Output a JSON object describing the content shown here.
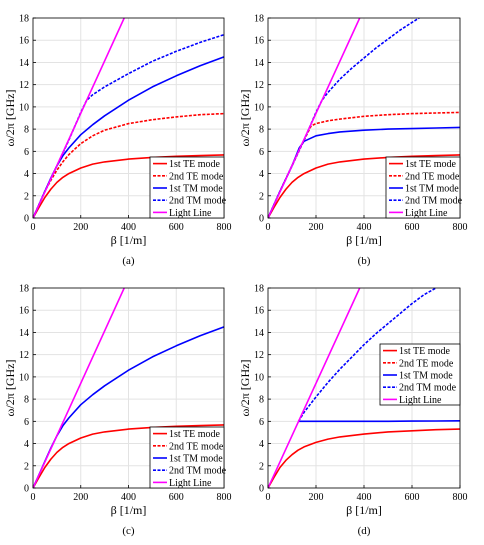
{
  "chart_data": [
    {
      "type": "line",
      "caption": "(a)",
      "xlabel": "β [1/m]",
      "ylabel": "ω/2π [GHz]",
      "xlim": [
        0,
        800
      ],
      "ylim": [
        0,
        18
      ],
      "xticks": [
        "0",
        "200",
        "400",
        "600",
        "800"
      ],
      "yticks": [
        "0",
        "2",
        "4",
        "6",
        "8",
        "10",
        "12",
        "14",
        "16",
        "18"
      ],
      "grid": true,
      "legend_position": "bottom-right",
      "series": [
        {
          "name": "1st TE mode",
          "color": "#ff0000",
          "dash": "solid",
          "x": [
            0,
            25,
            50,
            75,
            100,
            125,
            150,
            200,
            250,
            300,
            400,
            500,
            600,
            700,
            800
          ],
          "y": [
            0,
            0.95,
            1.85,
            2.6,
            3.2,
            3.65,
            4.0,
            4.5,
            4.85,
            5.05,
            5.3,
            5.45,
            5.55,
            5.62,
            5.68
          ]
        },
        {
          "name": "2nd TE mode",
          "color": "#ff0000",
          "dash": "dashed",
          "x": [
            0,
            25,
            50,
            75,
            100,
            125,
            150,
            175,
            200,
            250,
            300,
            400,
            500,
            600,
            700,
            800
          ],
          "y": [
            0,
            1.2,
            2.4,
            3.4,
            4.3,
            5.05,
            5.7,
            6.2,
            6.7,
            7.4,
            7.9,
            8.5,
            8.85,
            9.1,
            9.3,
            9.4
          ]
        },
        {
          "name": "1st TM mode",
          "color": "#0000ff",
          "dash": "solid",
          "x": [
            0,
            25,
            50,
            75,
            100,
            125,
            150,
            200,
            250,
            300,
            400,
            500,
            600,
            700,
            800
          ],
          "y": [
            0,
            1.2,
            2.4,
            3.6,
            4.7,
            5.6,
            6.3,
            7.5,
            8.4,
            9.2,
            10.6,
            11.8,
            12.8,
            13.7,
            14.5
          ]
        },
        {
          "name": "2nd TM mode",
          "color": "#0000ff",
          "dash": "dashed",
          "x": [
            0,
            50,
            100,
            150,
            200,
            225,
            250,
            300,
            400,
            500,
            600,
            700,
            800
          ],
          "y": [
            0,
            2.4,
            4.7,
            7.0,
            9.5,
            10.6,
            11.1,
            11.8,
            13.0,
            14.1,
            15.0,
            15.8,
            16.5
          ]
        },
        {
          "name": "Light Line",
          "color": "#ff00ff",
          "dash": "solid",
          "x": [
            0,
            382
          ],
          "y": [
            0,
            18
          ]
        }
      ]
    },
    {
      "type": "line",
      "caption": "(b)",
      "xlabel": "β [1/m]",
      "ylabel": "ω/2π [GHz]",
      "xlim": [
        0,
        800
      ],
      "ylim": [
        0,
        18
      ],
      "xticks": [
        "0",
        "200",
        "400",
        "600",
        "800"
      ],
      "yticks": [
        "0",
        "2",
        "4",
        "6",
        "8",
        "10",
        "12",
        "14",
        "16",
        "18"
      ],
      "grid": true,
      "legend_position": "bottom-right",
      "series": [
        {
          "name": "1st TE mode",
          "color": "#ff0000",
          "dash": "solid",
          "x": [
            0,
            25,
            50,
            75,
            100,
            125,
            150,
            200,
            250,
            300,
            400,
            500,
            600,
            700,
            800
          ],
          "y": [
            0,
            0.95,
            1.85,
            2.6,
            3.2,
            3.65,
            4.0,
            4.5,
            4.85,
            5.05,
            5.3,
            5.45,
            5.55,
            5.62,
            5.68
          ]
        },
        {
          "name": "2nd TE mode",
          "color": "#ff0000",
          "dash": "dashed",
          "x": [
            0,
            50,
            100,
            150,
            180,
            200,
            250,
            300,
            400,
            500,
            600,
            700,
            800
          ],
          "y": [
            0,
            2.4,
            4.7,
            7.0,
            8.3,
            8.5,
            8.75,
            8.9,
            9.15,
            9.3,
            9.4,
            9.45,
            9.5
          ]
        },
        {
          "name": "1st TM mode",
          "color": "#0000ff",
          "dash": "solid",
          "x": [
            0,
            50,
            100,
            130,
            150,
            200,
            250,
            300,
            400,
            500,
            600,
            700,
            800
          ],
          "y": [
            0,
            2.4,
            4.7,
            6.3,
            6.9,
            7.4,
            7.6,
            7.75,
            7.9,
            8.0,
            8.05,
            8.1,
            8.15
          ]
        },
        {
          "name": "2nd TM mode",
          "color": "#0000ff",
          "dash": "dashed",
          "x": [
            0,
            50,
            100,
            150,
            200,
            225,
            250,
            300,
            350,
            400,
            450,
            500,
            550,
            600,
            630
          ],
          "y": [
            0,
            2.4,
            4.7,
            7.0,
            9.5,
            10.6,
            11.3,
            12.5,
            13.5,
            14.4,
            15.3,
            16.1,
            16.9,
            17.6,
            18.0
          ]
        },
        {
          "name": "Light Line",
          "color": "#ff00ff",
          "dash": "solid",
          "x": [
            0,
            382
          ],
          "y": [
            0,
            18
          ]
        }
      ]
    },
    {
      "type": "line",
      "caption": "(c)",
      "xlabel": "β [1/m]",
      "ylabel": "ω/2π [GHz]",
      "xlim": [
        0,
        800
      ],
      "ylim": [
        0,
        18
      ],
      "xticks": [
        "0",
        "200",
        "400",
        "600",
        "800"
      ],
      "yticks": [
        "0",
        "2",
        "4",
        "6",
        "8",
        "10",
        "12",
        "14",
        "16",
        "18"
      ],
      "grid": true,
      "legend_position": "bottom-right",
      "series": [
        {
          "name": "1st TE mode",
          "color": "#ff0000",
          "dash": "solid",
          "x": [
            0,
            25,
            50,
            75,
            100,
            125,
            150,
            200,
            250,
            300,
            400,
            500,
            600,
            700,
            800
          ],
          "y": [
            0,
            0.95,
            1.85,
            2.6,
            3.2,
            3.65,
            4.0,
            4.5,
            4.85,
            5.05,
            5.3,
            5.45,
            5.55,
            5.62,
            5.68
          ]
        },
        {
          "name": "2nd TE mode",
          "color": "#ff0000",
          "dash": "dashed",
          "x": [],
          "y": []
        },
        {
          "name": "1st TM mode",
          "color": "#0000ff",
          "dash": "solid",
          "x": [
            0,
            25,
            50,
            75,
            100,
            125,
            150,
            200,
            250,
            300,
            400,
            500,
            600,
            700,
            800
          ],
          "y": [
            0,
            1.2,
            2.4,
            3.6,
            4.7,
            5.6,
            6.3,
            7.5,
            8.4,
            9.2,
            10.6,
            11.8,
            12.8,
            13.7,
            14.5
          ]
        },
        {
          "name": "2nd TM mode",
          "color": "#0000ff",
          "dash": "dashed",
          "x": [],
          "y": []
        },
        {
          "name": "Light Line",
          "color": "#ff00ff",
          "dash": "solid",
          "x": [
            0,
            382
          ],
          "y": [
            0,
            18
          ]
        }
      ]
    },
    {
      "type": "line",
      "caption": "(d)",
      "xlabel": "β [1/m]",
      "ylabel": "ω/2π [GHz]",
      "xlim": [
        0,
        800
      ],
      "ylim": [
        0,
        18
      ],
      "xticks": [
        "0",
        "200",
        "400",
        "600",
        "800"
      ],
      "yticks": [
        "0",
        "2",
        "4",
        "6",
        "8",
        "10",
        "12",
        "14",
        "16",
        "18"
      ],
      "grid": true,
      "legend_position": "middle-right",
      "series": [
        {
          "name": "1st TE mode",
          "color": "#ff0000",
          "dash": "solid",
          "x": [
            0,
            25,
            50,
            75,
            100,
            125,
            150,
            200,
            250,
            300,
            400,
            500,
            600,
            700,
            800
          ],
          "y": [
            0,
            0.95,
            1.85,
            2.5,
            3.0,
            3.4,
            3.7,
            4.1,
            4.4,
            4.6,
            4.85,
            5.05,
            5.15,
            5.25,
            5.3
          ]
        },
        {
          "name": "2nd TE mode",
          "color": "#ff0000",
          "dash": "dashed",
          "x": [],
          "y": []
        },
        {
          "name": "1st TM mode",
          "color": "#0000ff",
          "dash": "solid",
          "x": [
            127,
            200,
            300,
            400,
            500,
            600,
            700,
            800
          ],
          "y": [
            6.0,
            6.0,
            6.0,
            6.0,
            6.0,
            6.02,
            6.03,
            6.05
          ]
        },
        {
          "name": "2nd TM mode",
          "color": "#0000ff",
          "dash": "dashed",
          "x": [
            127,
            150,
            200,
            250,
            300,
            350,
            400,
            450,
            500,
            550,
            600,
            650,
            700
          ],
          "y": [
            6.0,
            6.8,
            8.2,
            9.5,
            10.7,
            11.8,
            12.9,
            13.9,
            14.8,
            15.7,
            16.6,
            17.4,
            18.0
          ]
        },
        {
          "name": "Light Line",
          "color": "#ff00ff",
          "dash": "solid",
          "x": [
            0,
            382
          ],
          "y": [
            0,
            18
          ]
        }
      ]
    }
  ]
}
